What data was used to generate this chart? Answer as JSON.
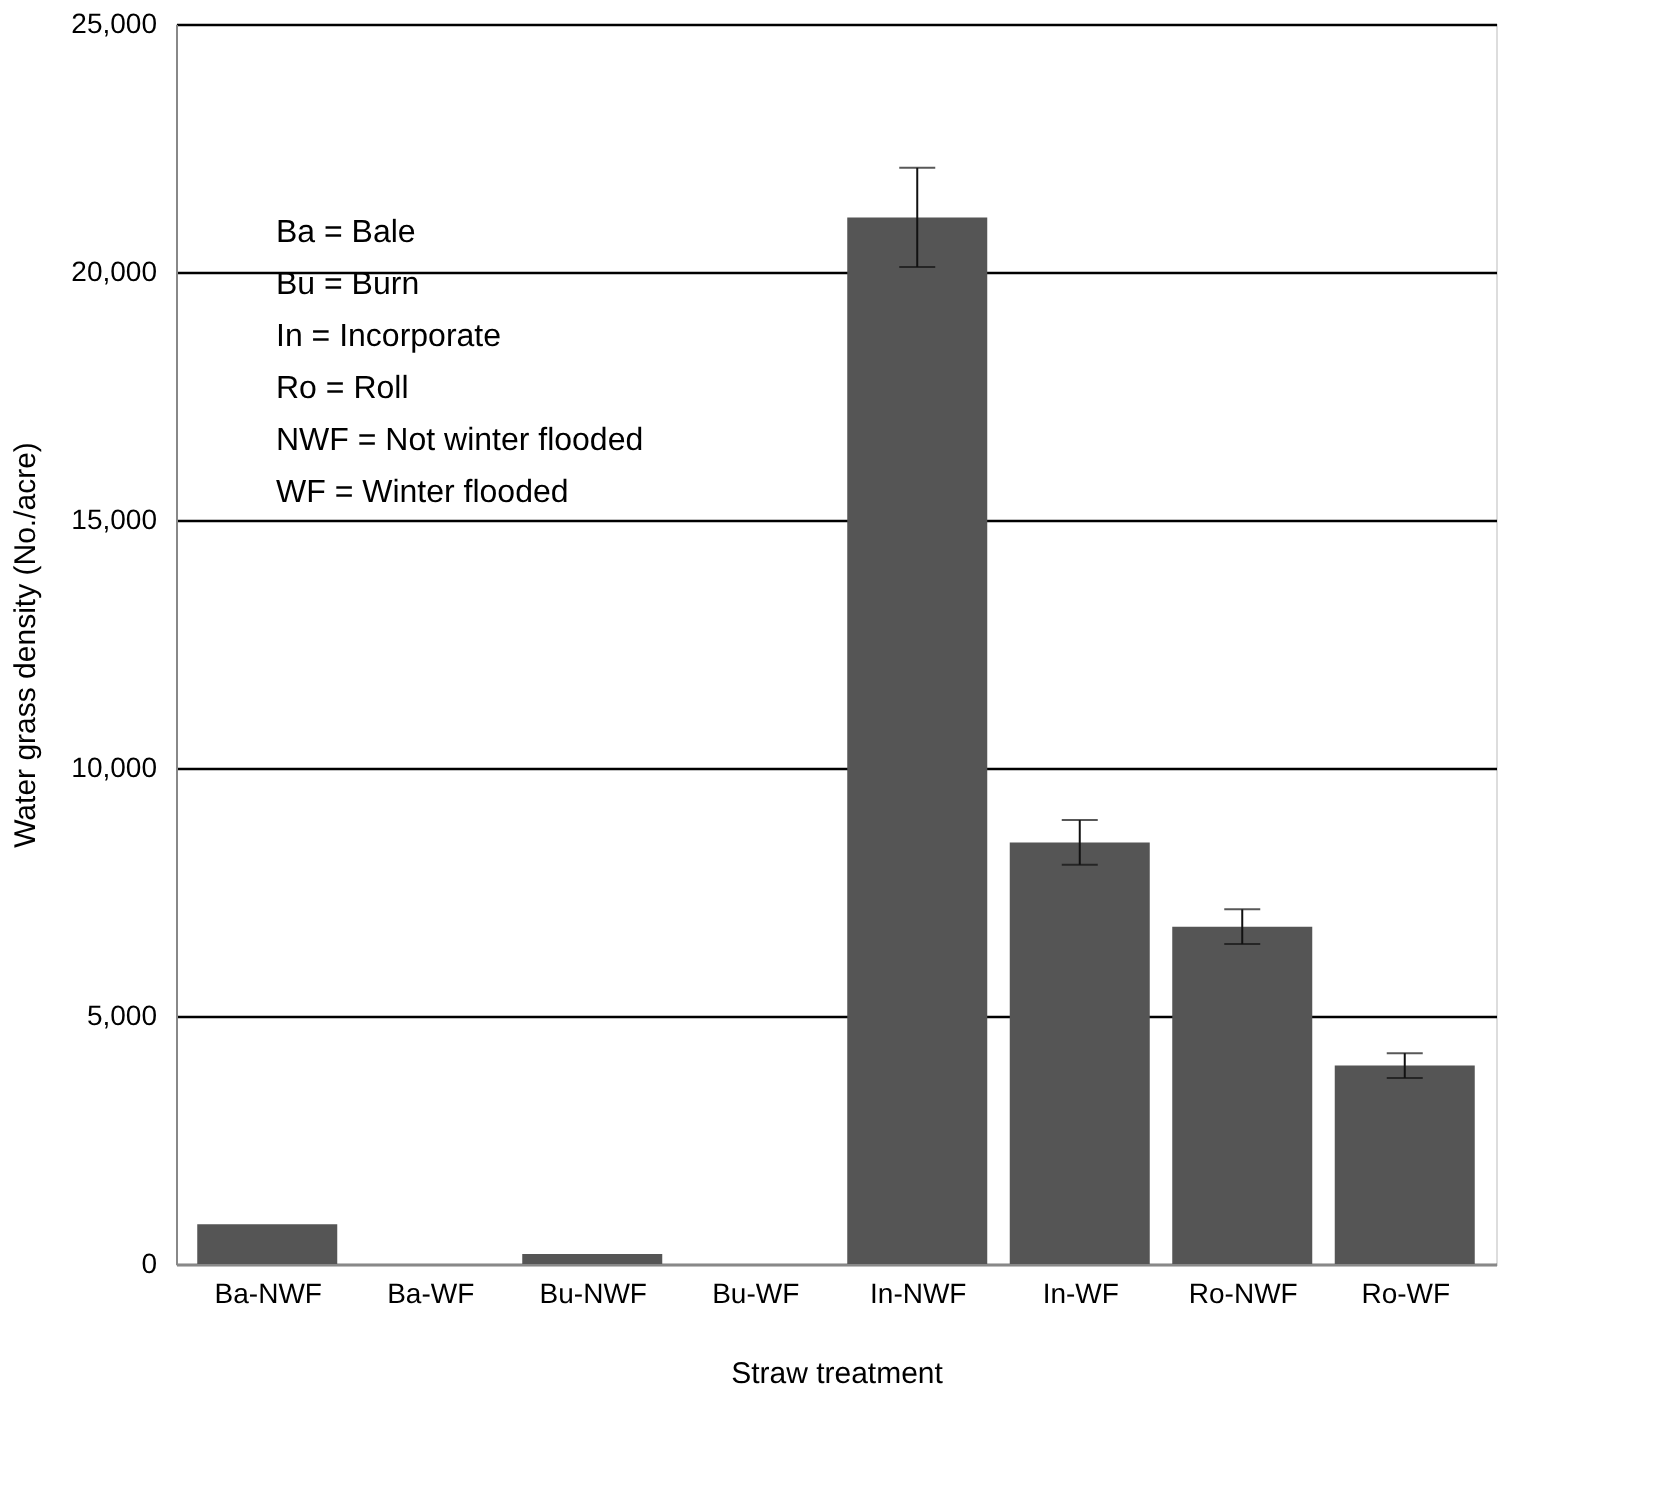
{
  "chart_data": {
    "type": "bar",
    "xlabel": "Straw treatment",
    "ylabel": "Water grass density (No./acre)",
    "categories": [
      "Ba-NWF",
      "Ba-WF",
      "Bu-NWF",
      "Bu-WF",
      "In-NWF",
      "In-WF",
      "Ro-NWF",
      "Ro-WF"
    ],
    "series": [
      {
        "color": "#555555",
        "values": [
          800,
          0,
          200,
          0,
          21100,
          8500,
          6800,
          4000
        ],
        "errors": [
          null,
          null,
          null,
          null,
          1000,
          450,
          350,
          250
        ]
      }
    ],
    "ylim": [
      0,
      25000
    ],
    "yticks": [
      0,
      {
        "value": 5000,
        "label": "5,000"
      },
      {
        "value": 10000,
        "label": "10,000"
      },
      {
        "value": 15000,
        "label": "15,000"
      },
      {
        "value": 20000,
        "label": "20,000"
      },
      {
        "value": 25000,
        "label": "25,000"
      }
    ],
    "grid": "y",
    "annotations": [
      "Ba = Bale",
      "Bu = Burn",
      "In = Incorporate",
      "Ro = Roll",
      "NWF = Not winter flooded",
      "WF = Winter flooded"
    ]
  }
}
